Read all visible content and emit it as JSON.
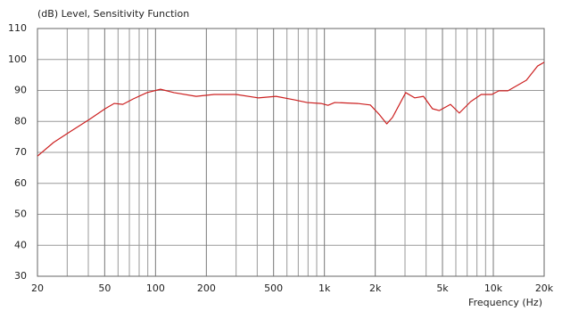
{
  "chart_data": {
    "type": "line",
    "title": "(dB)  Level,  Sensitivity Function",
    "x_label": "Frequency  (Hz)",
    "log_x": true,
    "grid": true,
    "x": [
      20,
      24.9,
      31,
      40.5,
      50.3,
      56.9,
      64,
      74,
      89,
      107,
      128.6,
      174,
      222,
      300,
      405,
      517,
      660,
      790,
      955,
      1050,
      1150,
      1570,
      1870,
      2100,
      2340,
      2530,
      3030,
      3430,
      3860,
      4360,
      4780,
      5580,
      6290,
      7350,
      8480,
      9800,
      10800,
      12200,
      15700,
      18300,
      20000
    ],
    "series": [
      {
        "name": "Level",
        "color": "#cc2020",
        "values": [
          68.8,
          73.2,
          76.6,
          80.6,
          84.1,
          85.8,
          85.5,
          87.3,
          89.3,
          90.4,
          89.3,
          88.1,
          88.7,
          88.7,
          87.6,
          88.1,
          87,
          86.1,
          85.8,
          85.2,
          86.1,
          85.8,
          85.3,
          82.4,
          79.2,
          81.3,
          89.3,
          87.6,
          88.1,
          84.1,
          83.5,
          85.5,
          82.7,
          86.4,
          88.7,
          88.7,
          89.9,
          89.9,
          93.3,
          97.9,
          99.1
        ]
      }
    ],
    "xlim": [
      20,
      20000
    ],
    "xticks": [
      20,
      50,
      100,
      200,
      500,
      {
        "value": 1000,
        "label": "1k"
      },
      {
        "value": 2000,
        "label": "2k"
      },
      {
        "value": 5000,
        "label": "5k"
      },
      {
        "value": 10000,
        "label": "10k"
      },
      {
        "value": 20000,
        "label": "20k"
      }
    ],
    "x_minor_ticks": [
      30,
      40,
      60,
      70,
      80,
      90,
      300,
      400,
      600,
      700,
      800,
      900,
      3000,
      4000,
      6000,
      7000,
      8000,
      9000
    ],
    "ylim": [
      30,
      110
    ],
    "yticks": [
      30,
      40,
      50,
      60,
      70,
      80,
      90,
      100,
      110
    ]
  }
}
